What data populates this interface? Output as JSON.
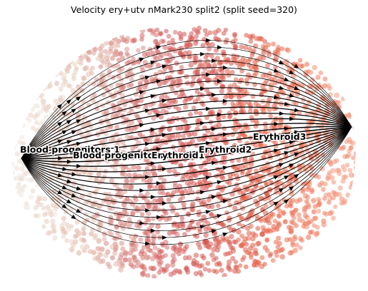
{
  "chart_data": {
    "type": "scatter",
    "subtype": "rna-velocity-streamplot",
    "title": "Velocity ery+utv nMark230 split2 (split seed=320)",
    "xlabel": "",
    "ylabel": "",
    "axes_visible": false,
    "grid": false,
    "legend": "on data",
    "stream_color": "#000000",
    "colormap_stops": [
      "#f0e8e2",
      "#e6c9b8",
      "#d88a84",
      "#d35656",
      "#db5a47",
      "#f07050",
      "#f49a80"
    ],
    "clusters": [
      {
        "label": "Blood progenitors 1"
      },
      {
        "label": "Blood progenitors 2"
      },
      {
        "label": "Erythroid1"
      },
      {
        "label": "Erythroid2"
      },
      {
        "label": "Erythroid3"
      }
    ]
  }
}
